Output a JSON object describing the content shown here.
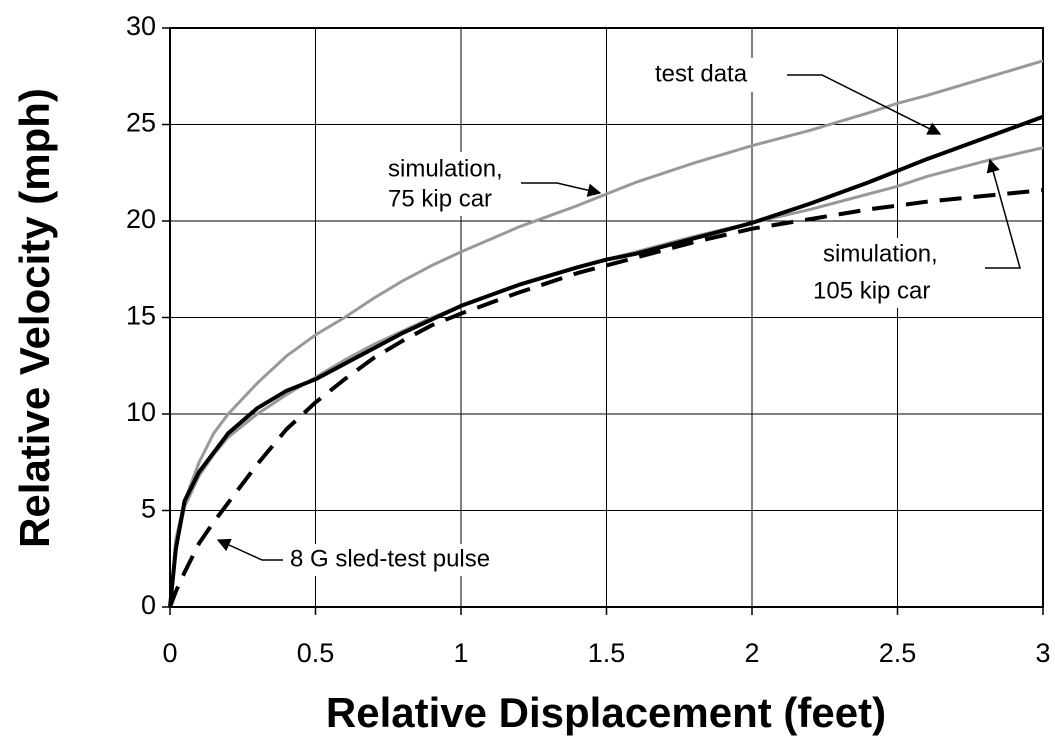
{
  "chart_data": {
    "type": "line",
    "xlabel": "Relative Displacement (feet)",
    "ylabel": "Relative Velocity (mph)",
    "x": [
      0,
      0.02,
      0.05,
      0.1,
      0.15,
      0.2,
      0.3,
      0.4,
      0.5,
      0.6,
      0.7,
      0.8,
      0.9,
      1,
      1.2,
      1.4,
      1.5,
      1.6,
      1.8,
      2,
      2.2,
      2.4,
      2.5,
      2.6,
      2.8,
      3
    ],
    "series": [
      {
        "color": "#999999",
        "values": [
          0,
          3.5,
          5.5,
          7.5,
          9,
          10,
          11.6,
          13,
          14.1,
          15,
          16,
          16.9,
          17.7,
          18.4,
          19.7,
          20.8,
          21.4,
          22,
          23,
          23.9,
          24.7,
          25.6,
          26.1,
          26.5,
          27.4,
          28.3
        ]
      },
      {
        "color": "#999999",
        "values": [
          0,
          3,
          5.2,
          6.8,
          7.9,
          8.8,
          10,
          11,
          11.9,
          12.8,
          13.6,
          14.3,
          15,
          15.6,
          16.7,
          17.6,
          18,
          18.4,
          19.2,
          19.9,
          20.6,
          21.4,
          21.8,
          22.3,
          23.1,
          23.8
        ]
      },
      {
        "color": "#000000",
        "dashed": true,
        "values": [
          0,
          0.8,
          1.8,
          3.3,
          4.4,
          5.4,
          7.4,
          9.2,
          10.6,
          11.8,
          12.9,
          13.8,
          14.6,
          15.2,
          16.3,
          17.3,
          17.7,
          18.1,
          18.9,
          19.6,
          20.1,
          20.6,
          20.8,
          21,
          21.3,
          21.6
        ]
      },
      {
        "color": "#000000",
        "values": [
          0,
          3,
          5.5,
          7,
          8,
          9,
          10.3,
          11.2,
          11.8,
          12.6,
          13.4,
          14.2,
          14.9,
          15.6,
          16.7,
          17.6,
          18,
          18.3,
          19.1,
          19.9,
          20.9,
          22,
          22.6,
          23.2,
          24.3,
          25.4
        ]
      }
    ],
    "xlim": [
      0,
      3
    ],
    "xticks": [
      0,
      0.5,
      1,
      1.5,
      2,
      2.5,
      3
    ],
    "ylim": [
      0,
      30
    ],
    "yticks": [
      0,
      5,
      10,
      15,
      20,
      25,
      30
    ],
    "grid": true,
    "annotations": [
      [
        "test data"
      ],
      [
        "simulation,",
        "75 kip car"
      ],
      [
        "simulation,",
        "105 kip car"
      ],
      [
        "8 G sled-test pulse"
      ]
    ]
  }
}
